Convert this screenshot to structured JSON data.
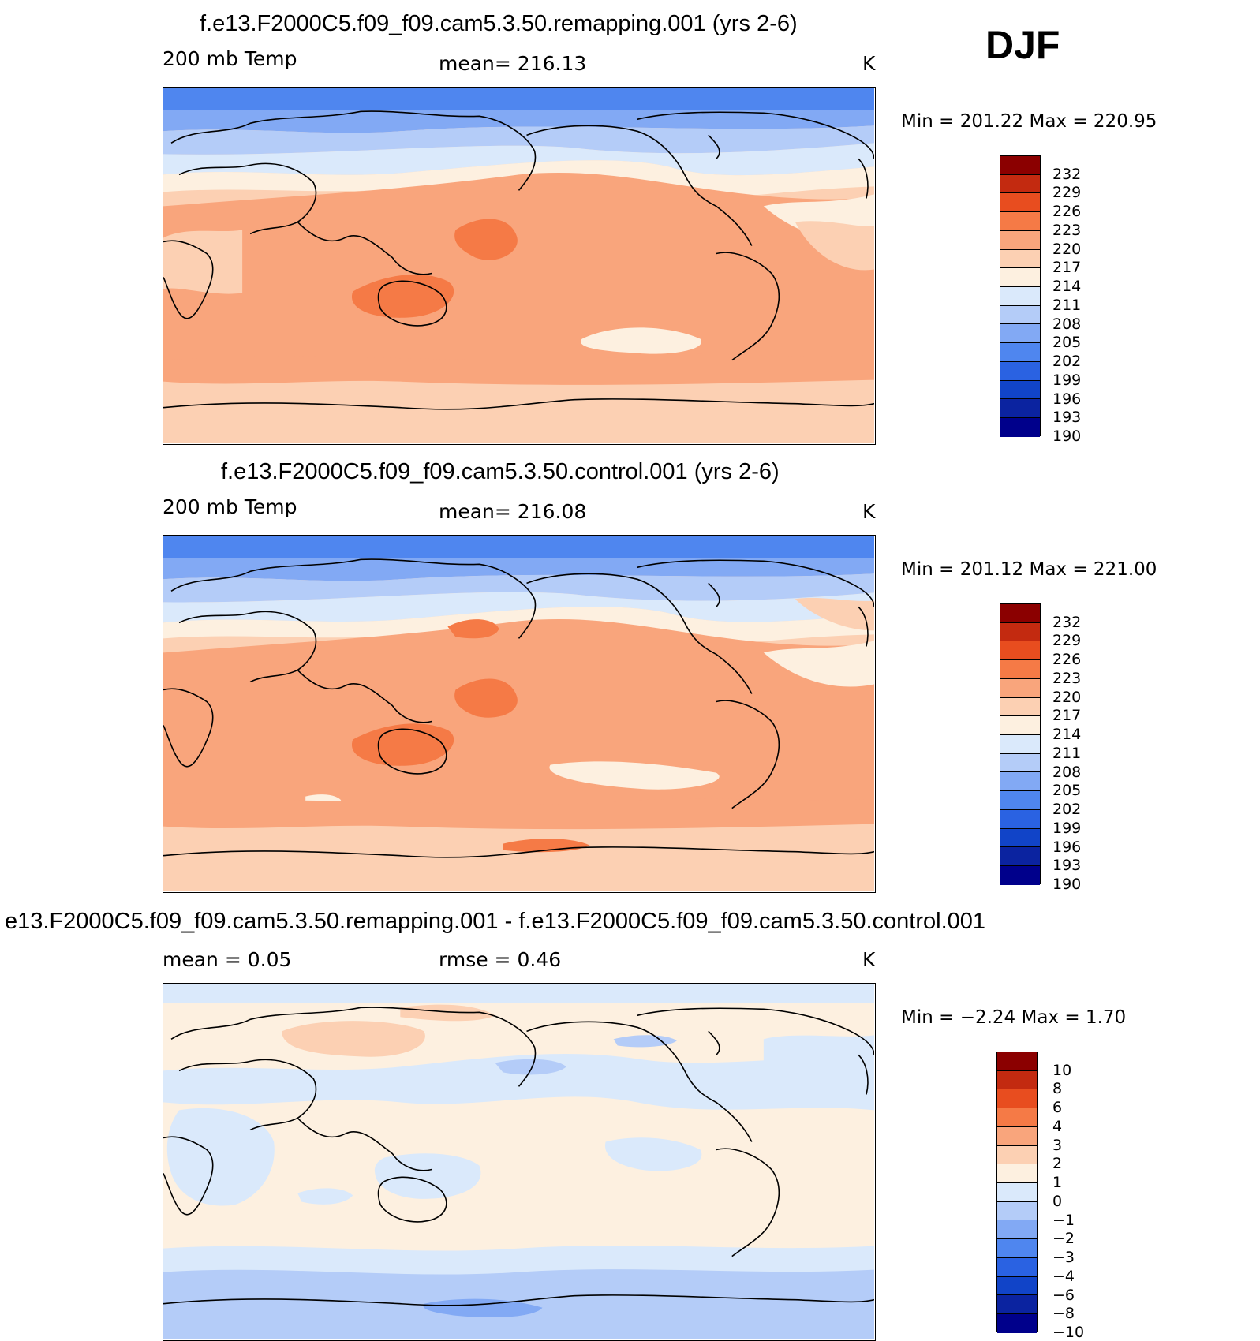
{
  "season": "DJF",
  "colors": {
    "temp": [
      "#00008b",
      "#0b23a0",
      "#1144c8",
      "#2a62e2",
      "#4f86ef",
      "#82a9f4",
      "#b4ccf8",
      "#dae9fb",
      "#fdf0e0",
      "#fcd0b3",
      "#f9a57c",
      "#f57a46",
      "#e84d1f",
      "#c32a10",
      "#8b0000"
    ],
    "diff": [
      "#00008b",
      "#0b23a0",
      "#1144c8",
      "#2a62e2",
      "#4f86ef",
      "#82a9f4",
      "#b4ccf8",
      "#dae9fb",
      "#fdf0e0",
      "#fcd0b3",
      "#f9a57c",
      "#f57a46",
      "#e84d1f",
      "#c32a10",
      "#8b0000"
    ]
  },
  "panels": [
    {
      "title": "f.e13.F2000C5.f09_f09.cam5.3.50.remapping.001 (yrs 2-6)",
      "left_label": "200 mb Temp",
      "mean_text": "mean=  216.13",
      "units": "K",
      "minmax_text": "Min  =  201.22  Max  =  220.95",
      "colorbar_labels": [
        "232",
        "229",
        "226",
        "223",
        "220",
        "217",
        "214",
        "211",
        "208",
        "205",
        "202",
        "199",
        "196",
        "193",
        "190"
      ]
    },
    {
      "title": "f.e13.F2000C5.f09_f09.cam5.3.50.control.001 (yrs 2-6)",
      "left_label": "200 mb Temp",
      "mean_text": "mean=  216.08",
      "units": "K",
      "minmax_text": "Min  =  201.12  Max  =  221.00",
      "colorbar_labels": [
        "232",
        "229",
        "226",
        "223",
        "220",
        "217",
        "214",
        "211",
        "208",
        "205",
        "202",
        "199",
        "196",
        "193",
        "190"
      ]
    },
    {
      "title": "e13.F2000C5.f09_f09.cam5.3.50.remapping.001 - f.e13.F2000C5.f09_f09.cam5.3.50.control.001",
      "left_label": "mean  =      0.05",
      "mean_text": "rmse  =      0.46",
      "units": "K",
      "minmax_text": "Min  =    −2.24  Max  =      1.70",
      "colorbar_labels": [
        "10",
        "8",
        "6",
        "4",
        "3",
        "2",
        "1",
        "0",
        "−1",
        "−2",
        "−3",
        "−4",
        "−6",
        "−8",
        "−10"
      ]
    }
  ]
}
